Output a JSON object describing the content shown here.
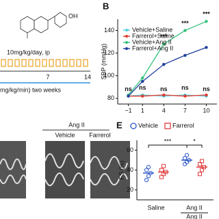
{
  "panel_labels": {
    "b": "B",
    "e": "E"
  },
  "schematic": {
    "dose": "10mg/kg/day, ip",
    "day_mid": "7",
    "day_end": "14",
    "infusion": "mg/kg/min) two weeks"
  },
  "echo": {
    "group": "Ang II",
    "columns": [
      "Vehicle",
      "Farrerol"
    ]
  },
  "chart_data": [
    {
      "type": "line",
      "y_label": "SBP (mmHg)",
      "x": [
        -1,
        1,
        4,
        7,
        10
      ],
      "xlim": [
        -2.5,
        11.5
      ],
      "xticks": [
        {
          "value": -1,
          "label": "−1"
        },
        1,
        4,
        7,
        10
      ],
      "ylim": [
        75,
        150
      ],
      "yticks": [
        80,
        100,
        120,
        140
      ],
      "series": [
        {
          "name": "Vehicle+Saline",
          "color": "#4fd3e0",
          "values": [
            82,
            83,
            82,
            83,
            82
          ]
        },
        {
          "name": "Farrerol+Saline",
          "color": "#e03a2f",
          "values": [
            82,
            82,
            83,
            82,
            83
          ]
        },
        {
          "name": "Vehicle+Ang II",
          "color": "#35c27a",
          "values": [
            83,
            98,
            128,
            140,
            148
          ]
        },
        {
          "name": "Farrerol+Ang II",
          "color": "#1f3f9e",
          "values": [
            82,
            95,
            110,
            118,
            125
          ]
        }
      ],
      "annotations": [
        {
          "x": -1,
          "text": "ns"
        },
        {
          "x": 1,
          "text": "ns"
        },
        {
          "x": 4,
          "text": "ns"
        },
        {
          "x": 7,
          "text": "ns"
        },
        {
          "x": 10,
          "text": "ns"
        },
        {
          "x": 4,
          "text": "***"
        },
        {
          "x": 7,
          "text": "***"
        },
        {
          "x": 10,
          "text": "***"
        }
      ]
    },
    {
      "type": "dot",
      "y_label": "FS (%)",
      "categories": [
        "Saline",
        "Ang II"
      ],
      "group_label": "Ang II",
      "ylim": [
        10,
        70
      ],
      "yticks": [
        20,
        40,
        60
      ],
      "series": [
        {
          "name": "Vehicle",
          "color": "#2a55c9",
          "values": [
            37,
            50
          ],
          "points": [
            [
              30,
              34,
              37,
              40,
              43
            ],
            [
              46,
              48,
              50,
              52,
              55
            ]
          ]
        },
        {
          "name": "Farrerol",
          "color": "#e03a3a",
          "values": [
            38,
            43
          ],
          "points": [
            [
              33,
              36,
              38,
              40,
              44
            ],
            [
              36,
              40,
              43,
              46,
              49
            ]
          ]
        }
      ],
      "significance": [
        "***",
        "*"
      ]
    }
  ]
}
